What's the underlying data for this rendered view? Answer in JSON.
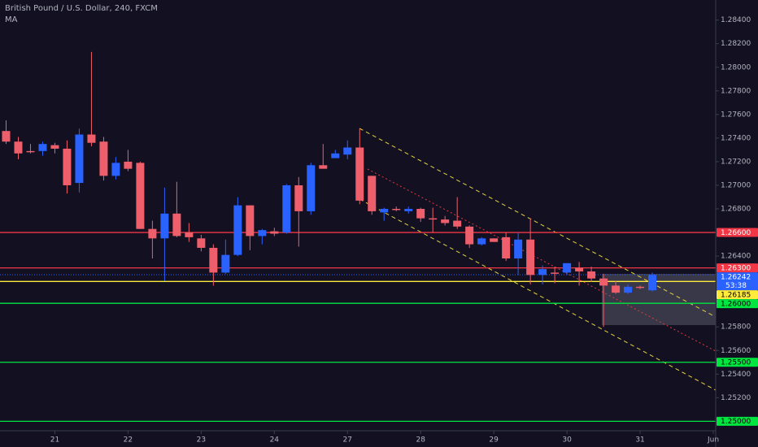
{
  "chart_data": {
    "type": "candlestick",
    "title": "British Pound / U.S. Dollar, 240, FXCM",
    "indicator": "MA",
    "up_color": "#2962ff",
    "down_color": "#ef5f6b",
    "open": [
      1.2746,
      1.2737,
      1.2729,
      1.2729,
      1.2734,
      1.2731,
      1.2702,
      1.2743,
      1.2737,
      1.2708,
      1.272,
      1.2719,
      1.2663,
      1.2655,
      1.2676,
      1.266,
      1.2655,
      1.2647,
      1.2626,
      1.2641,
      1.2683,
      1.2657,
      1.2661,
      1.266,
      1.27,
      1.2678,
      1.2717,
      1.2723,
      1.2726,
      1.2732,
      1.2708,
      1.2677,
      1.268,
      1.2678,
      1.268,
      1.2672,
      1.2671,
      1.267,
      1.2665,
      1.265,
      1.2655,
      1.2656,
      1.2638,
      1.2654,
      1.2624,
      1.2626,
      1.2626,
      1.263,
      1.2627,
      1.2621,
      1.2615,
      1.2609,
      1.2614,
      1.2611
    ],
    "high": [
      1.2755,
      1.2741,
      1.2735,
      1.2737,
      1.2736,
      1.2738,
      1.2748,
      1.2813,
      1.2741,
      1.2724,
      1.273,
      1.272,
      1.267,
      1.2698,
      1.2703,
      1.2668,
      1.2658,
      1.265,
      1.2654,
      1.269,
      1.2683,
      1.2663,
      1.2664,
      1.2701,
      1.2707,
      1.2719,
      1.2735,
      1.273,
      1.2738,
      1.2748,
      1.2708,
      1.2681,
      1.2682,
      1.2682,
      1.2681,
      1.2681,
      1.2674,
      1.269,
      1.2666,
      1.2656,
      1.2655,
      1.266,
      1.266,
      1.2672,
      1.2632,
      1.2631,
      1.2634,
      1.2635,
      1.2631,
      1.2625,
      1.2619,
      1.2616,
      1.2615,
      1.2626
    ],
    "low": [
      1.2735,
      1.2722,
      1.2727,
      1.2725,
      1.2727,
      1.2693,
      1.2694,
      1.2733,
      1.2704,
      1.2705,
      1.2712,
      1.2663,
      1.2638,
      1.2619,
      1.2656,
      1.2652,
      1.2644,
      1.2615,
      1.2625,
      1.264,
      1.2645,
      1.265,
      1.2657,
      1.2659,
      1.2648,
      1.2675,
      1.2714,
      1.2723,
      1.2722,
      1.2684,
      1.2675,
      1.267,
      1.2678,
      1.2676,
      1.2669,
      1.266,
      1.2666,
      1.2663,
      1.2647,
      1.2649,
      1.2652,
      1.2636,
      1.2624,
      1.2616,
      1.2616,
      1.2617,
      1.2624,
      1.2615,
      1.2618,
      1.258,
      1.2608,
      1.2608,
      1.2612,
      1.261
    ],
    "close": [
      1.2737,
      1.2727,
      1.2728,
      1.2735,
      1.2731,
      1.27,
      1.2743,
      1.2736,
      1.2708,
      1.2719,
      1.2714,
      1.2663,
      1.2655,
      1.2676,
      1.2657,
      1.2656,
      1.2647,
      1.2626,
      1.2641,
      1.2683,
      1.2657,
      1.2662,
      1.2659,
      1.27,
      1.2678,
      1.2717,
      1.2714,
      1.2727,
      1.2732,
      1.2687,
      1.2678,
      1.268,
      1.2679,
      1.268,
      1.2672,
      1.2671,
      1.2668,
      1.2665,
      1.265,
      1.2655,
      1.2652,
      1.2638,
      1.2654,
      1.2624,
      1.2629,
      1.2625,
      1.2634,
      1.2627,
      1.2621,
      1.2615,
      1.2609,
      1.2614,
      1.2613,
      1.2624
    ],
    "xlim": [
      -0.5,
      58.2
    ],
    "xticks": [
      {
        "value": 4,
        "label": "21"
      },
      {
        "value": 10,
        "label": "22"
      },
      {
        "value": 16,
        "label": "23"
      },
      {
        "value": 22,
        "label": "24"
      },
      {
        "value": 28,
        "label": "27"
      },
      {
        "value": 34,
        "label": "28"
      },
      {
        "value": 40,
        "label": "29"
      },
      {
        "value": 46,
        "label": "30"
      },
      {
        "value": 52,
        "label": "31"
      },
      {
        "value": 58,
        "label": "Jun"
      }
    ],
    "ylim": [
      1.2492,
      1.2857
    ],
    "yticks": [
      {
        "value": 1.284,
        "label": "1.28400"
      },
      {
        "value": 1.282,
        "label": "1.28200"
      },
      {
        "value": 1.28,
        "label": "1.28000"
      },
      {
        "value": 1.278,
        "label": "1.27800"
      },
      {
        "value": 1.276,
        "label": "1.27600"
      },
      {
        "value": 1.274,
        "label": "1.27400"
      },
      {
        "value": 1.272,
        "label": "1.27200"
      },
      {
        "value": 1.27,
        "label": "1.27000"
      },
      {
        "value": 1.268,
        "label": "1.26800"
      },
      {
        "value": 1.264,
        "label": "1.26400"
      },
      {
        "value": 1.258,
        "label": "1.25800"
      },
      {
        "value": 1.256,
        "label": "1.25600"
      },
      {
        "value": 1.254,
        "label": "1.25400"
      },
      {
        "value": 1.252,
        "label": "1.25200"
      }
    ],
    "levels": [
      {
        "value": 1.266,
        "label": "1.26600",
        "color": "#f23645"
      },
      {
        "value": 1.263,
        "label": "1.26300",
        "color": "#f23645"
      },
      {
        "value": 1.26185,
        "label": "1.26185",
        "color": "#ffeb3b"
      },
      {
        "value": 1.26,
        "label": "1.26000",
        "color": "#00e640"
      },
      {
        "value": 1.255,
        "label": "1.25500",
        "color": "#00e640"
      },
      {
        "value": 1.25,
        "label": "1.25000",
        "color": "#00e640"
      }
    ],
    "last_price": {
      "value": 1.26242,
      "label": "1.26242",
      "countdown": "53:38",
      "color": "#2962ff"
    }
  }
}
